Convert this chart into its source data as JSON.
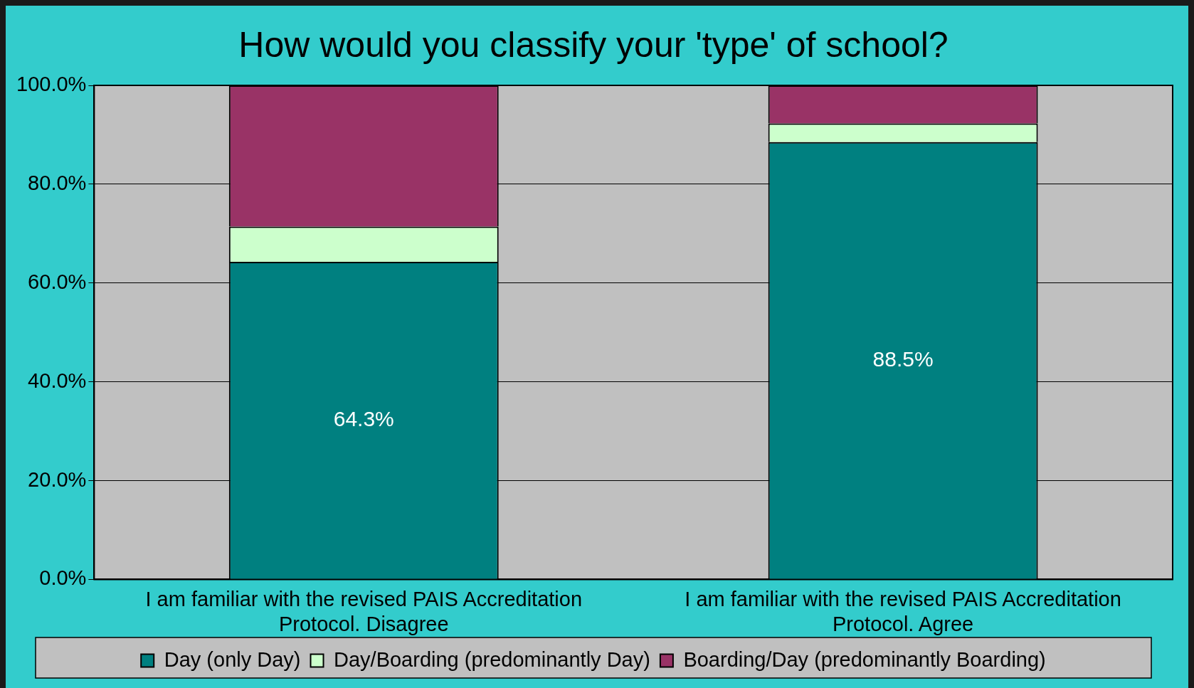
{
  "chart_data": {
    "type": "bar",
    "title": "How would you classify your 'type' of school?",
    "categories": [
      "I am familiar with the revised PAIS Accreditation Protocol. Disagree",
      "I am familiar with the revised PAIS Accreditation Protocol. Agree"
    ],
    "series": [
      {
        "name": "Day (only Day)",
        "color": "#008080",
        "values": [
          64.3,
          88.5
        ],
        "value_labels": [
          "64.3%",
          "88.5%"
        ]
      },
      {
        "name": "Day/Boarding (predominantly Day)",
        "color": "#ccffcc",
        "values": [
          7.1,
          3.8
        ]
      },
      {
        "name": "Boarding/Day (predominantly Boarding)",
        "color": "#993366",
        "values": [
          28.6,
          7.7
        ]
      }
    ],
    "stacked": true,
    "ylim": [
      0,
      100
    ],
    "yticks": [
      {
        "value": 0,
        "label": "0.0%"
      },
      {
        "value": 20,
        "label": "20.0%"
      },
      {
        "value": 40,
        "label": "40.0%"
      },
      {
        "value": 60,
        "label": "60.0%"
      },
      {
        "value": 80,
        "label": "80.0%"
      },
      {
        "value": 100,
        "label": "100.0%"
      }
    ],
    "grid": "y",
    "legend": "bottom"
  }
}
